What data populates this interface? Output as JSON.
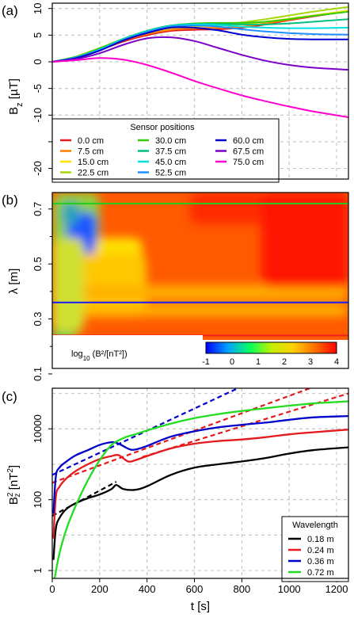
{
  "panels": {
    "a": "(a)",
    "b": "(b)",
    "c": "(c)"
  },
  "chart_data": [
    {
      "id": "a",
      "type": "line",
      "ylabel": "B_z [µT]",
      "xlim": [
        0,
        1250
      ],
      "ylim": [
        -22,
        11
      ],
      "yticks": [
        10,
        5,
        0,
        -5,
        -10,
        -15,
        -20
      ],
      "ytick_labels": [
        "10",
        "5",
        "0",
        "-5",
        "-10",
        "",
        "-20"
      ],
      "grid": true,
      "legend": {
        "title": "Sensor positions",
        "placement": "bottom-left",
        "entries": [
          "0.0 cm",
          "7.5 cm",
          "15.0 cm",
          "22.5 cm",
          "30.0 cm",
          "37.5 cm",
          "45.0 cm",
          "52.5 cm",
          "60.0 cm",
          "67.5 cm",
          "75.0 cm"
        ]
      },
      "series": [
        {
          "name": "0.0 cm",
          "color": "#e41a1c",
          "x": [
            0,
            100,
            200,
            300,
            400,
            500,
            600,
            700,
            800,
            900,
            1000,
            1100,
            1250
          ],
          "y": [
            0,
            0.8,
            2.2,
            3.8,
            5.0,
            5.8,
            6.0,
            6.1,
            6.4,
            7.0,
            7.8,
            8.5,
            9.5
          ]
        },
        {
          "name": "7.5 cm",
          "color": "#ff7f00",
          "x": [
            0,
            100,
            200,
            300,
            400,
            500,
            600,
            700,
            800,
            900,
            1000,
            1100,
            1250
          ],
          "y": [
            0,
            0.9,
            2.4,
            4.0,
            5.2,
            6.0,
            6.3,
            6.4,
            6.6,
            7.2,
            7.9,
            8.6,
            9.6
          ]
        },
        {
          "name": "15.0 cm",
          "color": "#ffe000",
          "x": [
            0,
            100,
            200,
            300,
            400,
            500,
            600,
            700,
            800,
            900,
            1000,
            1100,
            1250
          ],
          "y": [
            0,
            1.0,
            2.6,
            4.2,
            5.5,
            6.3,
            6.6,
            6.8,
            7.0,
            7.5,
            8.1,
            8.7,
            9.6
          ]
        },
        {
          "name": "22.5 cm",
          "color": "#a6d80a",
          "x": [
            0,
            100,
            200,
            300,
            400,
            500,
            600,
            700,
            800,
            900,
            1000,
            1100,
            1250
          ],
          "y": [
            0,
            1.0,
            2.6,
            4.3,
            5.7,
            6.6,
            7.0,
            7.2,
            7.4,
            8.0,
            8.7,
            9.4,
            10.3
          ]
        },
        {
          "name": "30.0 cm",
          "color": "#33cc00",
          "x": [
            0,
            100,
            200,
            300,
            400,
            500,
            600,
            700,
            800,
            900,
            1000,
            1100,
            1250
          ],
          "y": [
            0,
            0.9,
            2.5,
            4.3,
            5.8,
            6.8,
            7.2,
            7.3,
            7.3,
            7.5,
            8.0,
            8.6,
            9.4
          ]
        },
        {
          "name": "37.5 cm",
          "color": "#00c080",
          "x": [
            0,
            100,
            200,
            300,
            400,
            500,
            600,
            700,
            800,
            900,
            1000,
            1100,
            1250
          ],
          "y": [
            0,
            0.9,
            2.4,
            4.3,
            5.8,
            6.8,
            7.1,
            7.1,
            7.0,
            7.0,
            7.2,
            7.5,
            8.0
          ]
        },
        {
          "name": "45.0 cm",
          "color": "#00e0e0",
          "x": [
            0,
            100,
            200,
            300,
            400,
            500,
            600,
            700,
            800,
            900,
            1000,
            1100,
            1250
          ],
          "y": [
            0,
            0.8,
            2.3,
            4.2,
            5.7,
            6.7,
            7.0,
            6.9,
            6.6,
            6.4,
            6.3,
            6.3,
            6.4
          ]
        },
        {
          "name": "52.5 cm",
          "color": "#1e90ff",
          "x": [
            0,
            100,
            200,
            300,
            400,
            500,
            600,
            700,
            800,
            900,
            1000,
            1100,
            1250
          ],
          "y": [
            0,
            0.8,
            2.2,
            4.1,
            5.6,
            6.6,
            6.8,
            6.6,
            6.1,
            5.7,
            5.4,
            5.2,
            5.1
          ]
        },
        {
          "name": "60.0 cm",
          "color": "#0000cc",
          "x": [
            0,
            100,
            200,
            300,
            400,
            500,
            600,
            700,
            800,
            900,
            1000,
            1100,
            1250
          ],
          "y": [
            0,
            0.7,
            2.1,
            4.0,
            5.4,
            6.4,
            6.4,
            5.9,
            5.1,
            4.6,
            4.3,
            4.2,
            4.2
          ]
        },
        {
          "name": "67.5 cm",
          "color": "#7b00c8",
          "x": [
            0,
            100,
            200,
            300,
            400,
            500,
            600,
            700,
            800,
            900,
            1000,
            1100,
            1250
          ],
          "y": [
            0,
            0.5,
            1.6,
            3.2,
            4.4,
            4.6,
            3.9,
            2.6,
            1.3,
            0.2,
            -0.6,
            -1.1,
            -1.5
          ]
        },
        {
          "name": "75.0 cm",
          "color": "#ff00cc",
          "x": [
            0,
            100,
            200,
            300,
            400,
            500,
            600,
            700,
            800,
            900,
            1000,
            1100,
            1250
          ],
          "y": [
            0,
            0.3,
            0.7,
            0.4,
            -0.6,
            -2.0,
            -3.6,
            -5.0,
            -6.3,
            -7.4,
            -8.4,
            -9.3,
            -10.4
          ]
        }
      ]
    },
    {
      "id": "b",
      "type": "heatmap",
      "ylabel": "λ [m]",
      "ylim": [
        0.12,
        0.76
      ],
      "yticks": [
        0.1,
        0.3,
        0.5,
        0.7
      ],
      "yticks_minor": [
        0.2,
        0.4,
        0.6
      ],
      "colorbar": {
        "label_prefix": "log",
        "label_sub": "10",
        "label_body": "(B²/[nT²])",
        "min": -1,
        "max": 4,
        "tick_labels": [
          "-1",
          "0",
          "1",
          "2",
          "3",
          "4"
        ],
        "colors": [
          "#0000ff",
          "#00a0ff",
          "#00ff60",
          "#c0f000",
          "#ffd000",
          "#ff7000",
          "#ff0000"
        ]
      },
      "wavelength_lines": [
        {
          "lambda": 0.72,
          "color": "#22cc22"
        },
        {
          "lambda": 0.36,
          "color": "#1a1aff"
        },
        {
          "lambda": 0.24,
          "color": "#ee2222"
        },
        {
          "lambda": 0.18,
          "color": "#000000"
        }
      ]
    },
    {
      "id": "c",
      "type": "line",
      "xlabel": "t [s]",
      "ylabel": "B_z² [nT²]",
      "yscale": "log",
      "xlim": [
        0,
        1250
      ],
      "ylim": [
        0.6,
        140000
      ],
      "xticks": [
        0,
        200,
        400,
        600,
        800,
        1000,
        1200
      ],
      "yticks": [
        1,
        100,
        10000
      ],
      "grid": true,
      "legend": {
        "title": "Wavelength",
        "placement": "bottom-right",
        "entries": [
          "0.18 m",
          "0.24 m",
          "0.36 m",
          "0.72 m"
        ]
      },
      "series": [
        {
          "name": "0.18 m",
          "color": "#000000",
          "x": [
            5,
            15,
            30,
            60,
            100,
            150,
            200,
            250,
            270,
            300,
            350,
            400,
            500,
            600,
            700,
            800,
            900,
            1000,
            1100,
            1250
          ],
          "y": [
            2,
            15,
            30,
            55,
            80,
            110,
            140,
            200,
            260,
            200,
            190,
            240,
            500,
            800,
            1000,
            1200,
            1500,
            2000,
            2500,
            3000
          ]
        },
        {
          "name": "0.24 m",
          "color": "#e41a1c",
          "x": [
            5,
            15,
            30,
            60,
            100,
            150,
            200,
            250,
            280,
            320,
            350,
            400,
            500,
            600,
            700,
            800,
            900,
            1000,
            1100,
            1250
          ],
          "y": [
            8,
            120,
            230,
            400,
            650,
            1000,
            1400,
            1700,
            1800,
            1200,
            1300,
            1700,
            2800,
            3800,
            4500,
            5000,
            5800,
            7000,
            8000,
            9500
          ]
        },
        {
          "name": "0.36 m",
          "color": "#0000cc",
          "x": [
            5,
            15,
            30,
            60,
            100,
            150,
            200,
            250,
            280,
            330,
            360,
            400,
            500,
            600,
            700,
            800,
            900,
            1000,
            1100,
            1250
          ],
          "y": [
            40,
            450,
            800,
            1200,
            1800,
            2500,
            3500,
            4200,
            3800,
            2600,
            2700,
            3300,
            6000,
            8500,
            11000,
            13000,
            15000,
            18000,
            21000,
            23000
          ]
        },
        {
          "name": "0.72 m",
          "color": "#22dd22",
          "x": [
            10,
            30,
            60,
            100,
            150,
            200,
            250,
            300,
            350,
            400,
            500,
            600,
            700,
            800,
            900,
            1000,
            1100,
            1250
          ],
          "y": [
            0.6,
            3,
            15,
            70,
            350,
            1300,
            3500,
            5500,
            7000,
            9000,
            14000,
            20000,
            26000,
            32000,
            38000,
            45000,
            52000,
            60000
          ]
        }
      ],
      "fits": [
        {
          "color": "#000000",
          "x": [
            0,
            270
          ],
          "y": [
            35,
            320
          ]
        },
        {
          "color": "#e41a1c",
          "x": [
            0,
            1250
          ],
          "y": [
            300,
            350000
          ]
        },
        {
          "color": "#0000cc",
          "x": [
            0,
            1250
          ],
          "y": [
            500,
            4000000
          ]
        },
        {
          "color": "#e41a1c",
          "x": [
            380,
            1250
          ],
          "y": [
            1600,
            100000
          ]
        }
      ]
    }
  ]
}
